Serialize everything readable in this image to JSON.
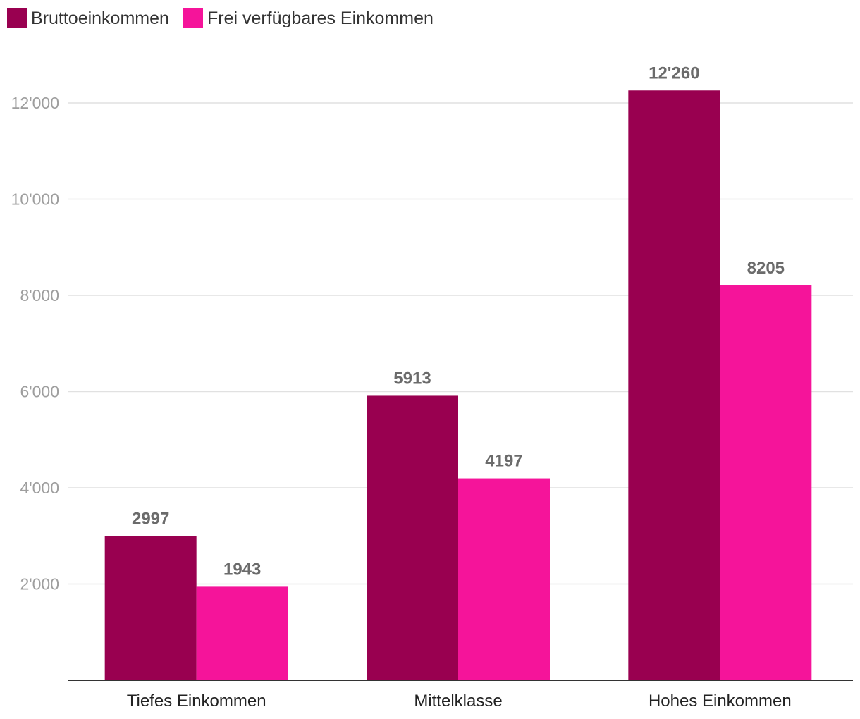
{
  "chart_data": {
    "type": "bar",
    "categories": [
      "Tiefes Einkommen",
      "Mittelklasse",
      "Hohes Einkommen"
    ],
    "series": [
      {
        "name": "Bruttoeinkommen",
        "color": "#990050",
        "values": [
          2997,
          5913,
          12260
        ],
        "labels": [
          "2997",
          "5913",
          "12'260"
        ]
      },
      {
        "name": "Frei verfügbares Einkommen",
        "color": "#f5149a",
        "values": [
          1943,
          4197,
          8205
        ],
        "labels": [
          "1943",
          "4197",
          "8205"
        ]
      }
    ],
    "yticks": [
      2000,
      4000,
      6000,
      8000,
      10000,
      12000
    ],
    "ytick_labels": [
      "2'000",
      "4'000",
      "6'000",
      "8'000",
      "10'000",
      "12'000"
    ],
    "ylim": [
      0,
      13000
    ],
    "grid": true,
    "legend_position": "top-left",
    "title": "",
    "xlabel": "",
    "ylabel": ""
  }
}
